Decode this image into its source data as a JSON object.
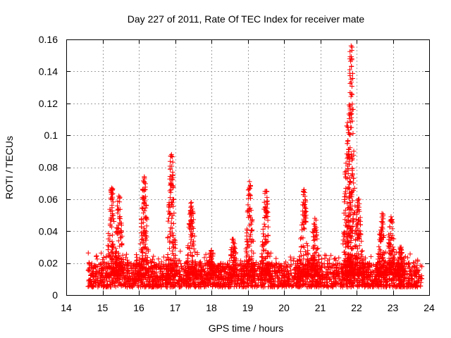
{
  "chart_data": {
    "type": "scatter",
    "title": "Day 227 of 2011, Rate Of TEC Index for receiver mate",
    "xlabel": "GPS time / hours",
    "ylabel": "ROTI / TECUs",
    "xlim": [
      14,
      24
    ],
    "ylim": [
      0,
      0.16
    ],
    "x_ticks": [
      14,
      15,
      16,
      17,
      18,
      19,
      20,
      21,
      22,
      23,
      24
    ],
    "y_ticks": [
      0,
      0.02,
      0.04,
      0.06,
      0.08,
      0.1,
      0.12,
      0.14,
      0.16
    ],
    "x_tick_labels": [
      "14",
      "15",
      "16",
      "17",
      "18",
      "19",
      "20",
      "21",
      "22",
      "23",
      "24"
    ],
    "y_tick_labels": [
      "0",
      "0.02",
      "0.04",
      "0.06",
      "0.08",
      "0.1",
      "0.12",
      "0.14",
      "0.16"
    ],
    "grid": true,
    "marker": "plus",
    "marker_color": "#ff0000",
    "data_x_range": [
      14.6,
      23.8
    ],
    "baseline_band": [
      0.005,
      0.02
    ],
    "bursts": [
      {
        "x": 15.25,
        "y_max": 0.067
      },
      {
        "x": 15.45,
        "y_max": 0.062
      },
      {
        "x": 16.15,
        "y_max": 0.074
      },
      {
        "x": 16.9,
        "y_max": 0.088
      },
      {
        "x": 17.45,
        "y_max": 0.058
      },
      {
        "x": 18.0,
        "y_max": 0.028
      },
      {
        "x": 18.6,
        "y_max": 0.035
      },
      {
        "x": 19.05,
        "y_max": 0.071
      },
      {
        "x": 19.5,
        "y_max": 0.065
      },
      {
        "x": 20.55,
        "y_max": 0.066
      },
      {
        "x": 20.85,
        "y_max": 0.048
      },
      {
        "x": 21.75,
        "y_max": 0.108
      },
      {
        "x": 21.85,
        "y_max": 0.156
      },
      {
        "x": 22.05,
        "y_max": 0.06
      },
      {
        "x": 22.7,
        "y_max": 0.051
      },
      {
        "x": 22.95,
        "y_max": 0.049
      },
      {
        "x": 23.2,
        "y_max": 0.03
      }
    ]
  }
}
